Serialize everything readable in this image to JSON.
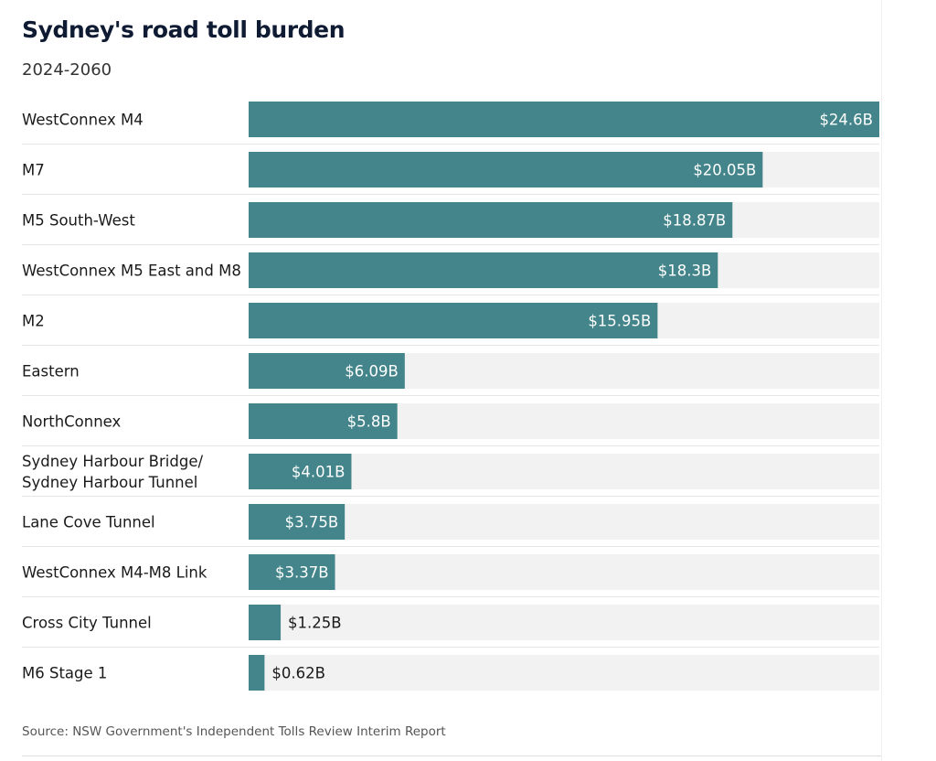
{
  "chart_data": {
    "type": "bar",
    "orientation": "horizontal",
    "title": "Sydney's road toll burden",
    "subtitle": "2024-2060",
    "categories": [
      "WestConnex M4",
      "M7",
      "M5 South-West",
      "WestConnex M5 East and M8",
      "M2",
      "Eastern",
      "NorthConnex",
      "Sydney Harbour Bridge/\nSydney Harbour Tunnel",
      "Lane Cove Tunnel",
      "WestConnex M4-M8 Link",
      "Cross City Tunnel",
      "M6 Stage 1"
    ],
    "values": [
      24.6,
      20.05,
      18.87,
      18.3,
      15.95,
      6.09,
      5.8,
      4.01,
      3.75,
      3.37,
      1.25,
      0.62
    ],
    "value_labels": [
      "$24.6B",
      "$20.05B",
      "$18.87B",
      "$18.3B",
      "$15.95B",
      "$6.09B",
      "$5.8B",
      "$4.01B",
      "$3.75B",
      "$3.37B",
      "$1.25B",
      "$0.62B"
    ],
    "xlim": [
      0,
      24.6
    ],
    "grid": false,
    "legend": "none",
    "source": "Source: NSW Government's Independent Tolls Review Interim Report"
  },
  "colors": {
    "bar": "#43858a",
    "track": "#f2f2f2",
    "separator": "#e6e6e6",
    "label_inside": "#ffffff",
    "label_outside": "#1a1a1a"
  }
}
